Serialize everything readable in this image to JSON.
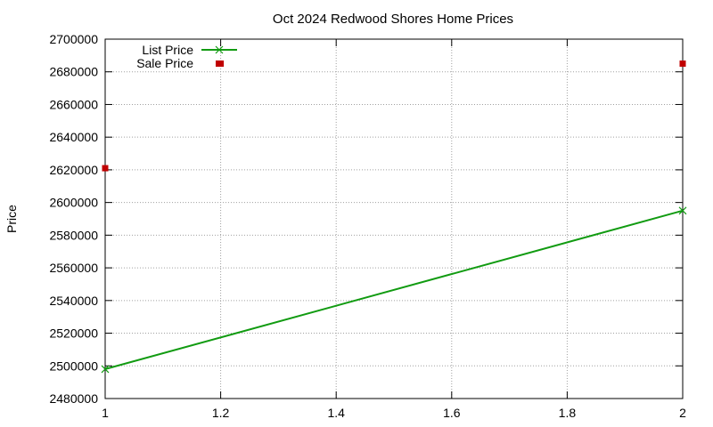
{
  "chart_data": {
    "type": "line",
    "title": "Oct 2024 Redwood Shores Home Prices",
    "xlabel": "",
    "ylabel": "Price",
    "xlim": [
      1,
      2
    ],
    "ylim": [
      2480000,
      2700000
    ],
    "x_ticks": [
      "1",
      "1.2",
      "1.4",
      "1.6",
      "1.8",
      "2"
    ],
    "y_ticks": [
      "2480000",
      "2500000",
      "2520000",
      "2540000",
      "2560000",
      "2580000",
      "2600000",
      "2620000",
      "2640000",
      "2660000",
      "2680000",
      "2700000"
    ],
    "grid": true,
    "legend_position": "top-left",
    "series": [
      {
        "name": "List Price",
        "style": "line-points",
        "color": "#119b11",
        "points": [
          {
            "x": 1,
            "y": 2498000
          },
          {
            "x": 2,
            "y": 2595000
          }
        ]
      },
      {
        "name": "Sale Price",
        "style": "points",
        "color": "#c00000",
        "points": [
          {
            "x": 1,
            "y": 2621000
          },
          {
            "x": 1.2,
            "y": 2685000
          },
          {
            "x": 2,
            "y": 2685000
          }
        ]
      }
    ]
  }
}
